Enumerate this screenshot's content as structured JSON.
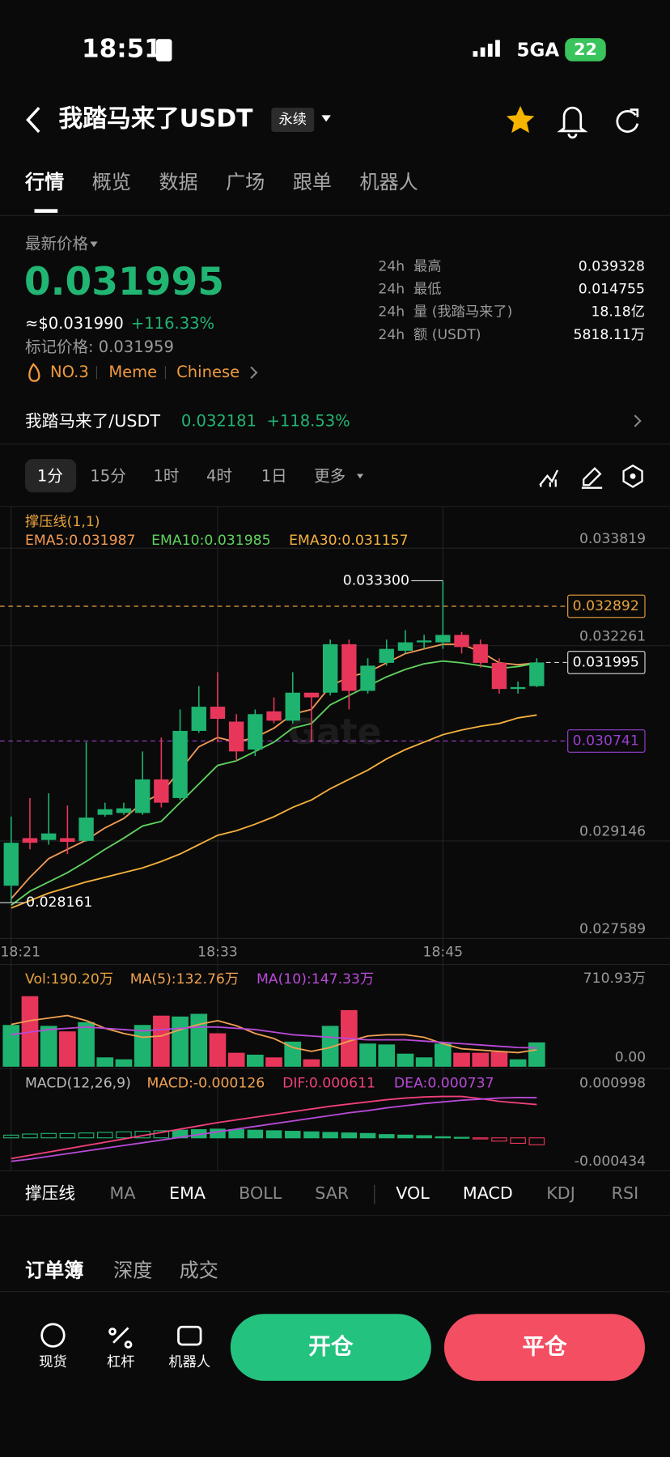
{
  "status": {
    "time": "18:51",
    "network": "5GA",
    "battery": "22"
  },
  "header": {
    "title": "我踏马来了USDT",
    "tag": "永续"
  },
  "tabs": [
    "行情",
    "概览",
    "数据",
    "广场",
    "跟单",
    "机器人"
  ],
  "ticker": {
    "label": "最新价格",
    "price": "0.031995",
    "usd": "≈$0.031990",
    "change": "+116.33%",
    "mark": "标记价格: 0.031959",
    "tags": [
      "NO.3",
      "Meme",
      "Chinese"
    ]
  },
  "stats": {
    "rows": [
      [
        "24h",
        "最高",
        "0.039328"
      ],
      [
        "24h",
        "最低",
        "0.014755"
      ],
      [
        "24h",
        "量 (我踏马来了)",
        "18.18亿"
      ],
      [
        "24h",
        "额 (USDT)",
        "5818.11万"
      ]
    ]
  },
  "spot": {
    "pair": "我踏马来了/USDT",
    "price": "0.032181",
    "change": "+118.53%"
  },
  "intervals": [
    "1分",
    "15分",
    "1时",
    "4时",
    "1日",
    "更多"
  ],
  "watermark": "Gate",
  "chart_data": [
    {
      "type": "candlestick",
      "indicator": "撑压线(1,1)",
      "categories": [
        "18:21",
        null,
        null,
        null,
        null,
        null,
        null,
        null,
        null,
        null,
        null,
        "18:33",
        null,
        null,
        null,
        null,
        null,
        null,
        null,
        null,
        null,
        null,
        null,
        "18:45",
        null,
        null,
        null,
        null,
        null
      ],
      "open": [
        0.028432,
        0.029191,
        0.029162,
        0.029191,
        0.029147,
        0.029563,
        0.029593,
        0.029593,
        0.030129,
        0.029831,
        0.030903,
        0.031289,
        0.031051,
        0.030605,
        0.031215,
        0.031066,
        0.031513,
        0.031513,
        0.032286,
        0.031542,
        0.031989,
        0.032182,
        0.032316,
        0.032316,
        0.032435,
        0.032286,
        0.031989,
        0.031572,
        0.031617
      ],
      "high": [
        0.029534,
        0.029831,
        0.029906,
        0.029712,
        0.030724,
        0.029757,
        0.029757,
        0.030575,
        0.030798,
        0.031245,
        0.031617,
        0.03184,
        0.03117,
        0.031245,
        0.031438,
        0.03184,
        0.031513,
        0.032361,
        0.032361,
        0.032063,
        0.032361,
        0.03251,
        0.032435,
        0.0333,
        0.03248,
        0.032361,
        0.032063,
        0.031691,
        0.032063
      ],
      "low": [
        0.028161,
        0.029013,
        0.029087,
        0.028938,
        0.029132,
        0.029534,
        0.029563,
        0.029563,
        0.029682,
        0.029801,
        0.030873,
        0.030724,
        0.030426,
        0.030501,
        0.031022,
        0.031022,
        0.030724,
        0.031468,
        0.031245,
        0.031498,
        0.031944,
        0.032138,
        0.032212,
        0.032212,
        0.032138,
        0.031914,
        0.031498,
        0.031498,
        0.031602
      ],
      "close": [
        0.029117,
        0.029117,
        0.029266,
        0.029132,
        0.029519,
        0.029653,
        0.029667,
        0.030129,
        0.029757,
        0.030903,
        0.031289,
        0.031096,
        0.030575,
        0.03117,
        0.031066,
        0.031513,
        0.031438,
        0.032286,
        0.031542,
        0.031944,
        0.032212,
        0.032316,
        0.032346,
        0.032435,
        0.032242,
        0.031989,
        0.031572,
        0.031602,
        0.031995
      ],
      "up_color": "#1fb370",
      "down_color": "#e8365a",
      "series": [
        {
          "name": "EMA5:0.031987",
          "color": "#f39a55",
          "values": [
            0.028224,
            0.028566,
            0.028864,
            0.029013,
            0.029161,
            0.029355,
            0.029504,
            0.029757,
            0.029905,
            0.030277,
            0.030649,
            0.030798,
            0.030724,
            0.030798,
            0.030947,
            0.03117,
            0.031245,
            0.031617,
            0.031765,
            0.03184,
            0.031989,
            0.032137,
            0.032212,
            0.032286,
            0.032286,
            0.032167,
            0.031989,
            0.03196,
            0.031987
          ]
        },
        {
          "name": "EMA10:0.031985",
          "color": "#5fd35f",
          "values": [
            0.02812,
            0.028343,
            0.028492,
            0.028641,
            0.028819,
            0.029013,
            0.029191,
            0.029385,
            0.029459,
            0.029757,
            0.030054,
            0.030352,
            0.030426,
            0.030575,
            0.030724,
            0.030947,
            0.031021,
            0.031319,
            0.031468,
            0.031617,
            0.031765,
            0.031884,
            0.031974,
            0.032018,
            0.031989,
            0.031944,
            0.0319,
            0.03193,
            0.031985
          ]
        },
        {
          "name": "EMA30:0.031157",
          "color": "#f5b13d",
          "values": [
            0.028075,
            0.028194,
            0.028313,
            0.028402,
            0.028492,
            0.028566,
            0.028641,
            0.028715,
            0.028819,
            0.028938,
            0.029087,
            0.029236,
            0.02931,
            0.029414,
            0.029533,
            0.029682,
            0.029801,
            0.02998,
            0.030129,
            0.030277,
            0.030456,
            0.030605,
            0.030724,
            0.030843,
            0.030917,
            0.030977,
            0.031021,
            0.03111,
            0.031157
          ]
        }
      ],
      "levels": [
        {
          "value": 0.032892,
          "color": "#e8a33d"
        },
        {
          "value": 0.031995,
          "color": "#d8d8d8"
        },
        {
          "value": 0.030741,
          "color": "#9b3fd0"
        }
      ],
      "annotations": [
        {
          "value": 0.0333,
          "label": "0.033300"
        },
        {
          "value": 0.028161,
          "label": "0.028161"
        }
      ],
      "ylim": [
        0.027589,
        0.034486
      ],
      "yticks": [
        0.027589,
        0.029146,
        0.032261,
        0.033819
      ],
      "grid": true
    },
    {
      "type": "bar",
      "label": "Vol:190.20万",
      "label_color": "#e8a33d",
      "values": [
        326,
        551,
        319,
        276,
        348,
        73,
        58,
        326,
        399,
        392,
        413,
        261,
        109,
        94,
        73,
        196,
        58,
        319,
        442,
        181,
        174,
        102,
        73,
        181,
        109,
        109,
        116,
        58,
        190.2
      ],
      "series": [
        {
          "name": "MA(5):132.76万",
          "color": "#f0a050",
          "values": [
            330,
            360,
            380,
            400,
            360,
            300,
            260,
            230,
            240,
            290,
            330,
            360,
            320,
            260,
            220,
            150,
            120,
            150,
            200,
            240,
            250,
            250,
            230,
            180,
            140,
            130,
            120,
            110,
            132.76
          ]
        },
        {
          "name": "MA(10):147.33万",
          "color": "#b84ad8",
          "values": [
            250,
            270,
            290,
            300,
            310,
            300,
            290,
            280,
            290,
            300,
            310,
            310,
            300,
            290,
            270,
            250,
            240,
            230,
            220,
            210,
            210,
            210,
            200,
            190,
            180,
            170,
            160,
            150,
            147.33
          ]
        }
      ],
      "ylim": [
        0,
        710.93
      ],
      "yticks": [
        {
          "value": 710.93,
          "label": "710.93万"
        },
        {
          "value": 0,
          "label": "0.00"
        }
      ]
    },
    {
      "type": "macd",
      "title": "MACD(12,26,9)",
      "series": [
        {
          "name": "MACD:-0.000126",
          "color": "#f0a050",
          "values": [
            5e-05,
            7e-05,
            8e-05,
            8e-05,
            9e-05,
            0.0001,
            0.00011,
            0.00012,
            0.00013,
            0.00014,
            0.00015,
            0.00016,
            0.00015,
            0.00014,
            0.00013,
            0.00012,
            0.00011,
            0.0001,
            9e-05,
            8e-05,
            6e-05,
            5e-05,
            4e-05,
            2e-05,
            1e-05,
            -2e-05,
            -6e-05,
            -0.0001,
            -0.000126
          ]
        },
        {
          "name": "DIF:0.000611",
          "color": "#f0407a",
          "values": [
            -0.00038,
            -0.00032,
            -0.00026,
            -0.0002,
            -0.00014,
            -8e-05,
            -2e-05,
            4e-05,
            0.0001,
            0.00016,
            0.00022,
            0.00028,
            0.00033,
            0.00038,
            0.00043,
            0.00048,
            0.00053,
            0.00058,
            0.00062,
            0.00066,
            0.0007,
            0.00073,
            0.00075,
            0.00076,
            0.00076,
            0.00072,
            0.00067,
            0.00064,
            0.000611
          ]
        },
        {
          "name": "DEA:0.000737",
          "color": "#b84ad8",
          "values": [
            -0.00043,
            -0.00039,
            -0.00034,
            -0.00029,
            -0.00024,
            -0.00019,
            -0.00014,
            -9e-05,
            -4e-05,
            1e-05,
            6e-05,
            0.00011,
            0.00016,
            0.00021,
            0.00026,
            0.00031,
            0.00036,
            0.00041,
            0.00046,
            0.0005,
            0.00055,
            0.00059,
            0.00063,
            0.00066,
            0.00069,
            0.00071,
            0.00073,
            0.00074,
            0.000737
          ]
        }
      ],
      "ylim": [
        -0.000434,
        0.000998
      ],
      "yticks": [
        0.000998,
        -0.000434
      ]
    }
  ],
  "indicators": [
    "撑压线",
    "MA",
    "EMA",
    "BOLL",
    "SAR",
    "VOL",
    "MACD",
    "KDJ",
    "RSI"
  ],
  "book_tabs": [
    "订单簿",
    "深度",
    "成交"
  ],
  "nav": [
    "现货",
    "杠杆",
    "机器人"
  ],
  "actions": {
    "open": "开仓",
    "close": "平仓"
  }
}
